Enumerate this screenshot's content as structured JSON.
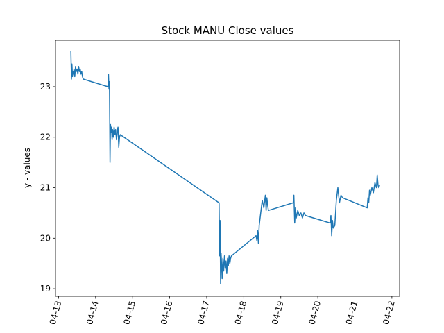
{
  "chart_data": {
    "type": "line",
    "title": "Stock MANU Close values",
    "xlabel": "",
    "ylabel": "y - values",
    "x_tick_labels": [
      "04-13",
      "04-14",
      "04-15",
      "04-16",
      "04-17",
      "04-18",
      "04-19",
      "04-20",
      "04-21",
      "04-22"
    ],
    "y_tick_labels": [
      "19",
      "20",
      "21",
      "22",
      "23"
    ],
    "xlim": [
      "2021-04-12T22:00",
      "2021-04-22T05:00"
    ],
    "ylim": [
      18.85,
      23.92
    ],
    "grid": false,
    "series_color": "#1f77b4",
    "series": [
      {
        "x": [
          "2021-04-13T08:00",
          "2021-04-13T08:20",
          "2021-04-13T08:40",
          "2021-04-13T09:00",
          "2021-04-13T09:20",
          "2021-04-13T09:40",
          "2021-04-13T10:00",
          "2021-04-13T10:30",
          "2021-04-13T11:00",
          "2021-04-13T11:30",
          "2021-04-13T12:00",
          "2021-04-13T12:30",
          "2021-04-13T13:00",
          "2021-04-13T13:30",
          "2021-04-13T14:00",
          "2021-04-13T14:30",
          "2021-04-13T15:00",
          "2021-04-13T15:30",
          "2021-04-13T16:00",
          "2021-04-14T08:00",
          "2021-04-14T08:20",
          "2021-04-14T08:40",
          "2021-04-14T09:00",
          "2021-04-14T09:20",
          "2021-04-14T09:40",
          "2021-04-14T10:00",
          "2021-04-14T10:20",
          "2021-04-14T10:40",
          "2021-04-14T11:00",
          "2021-04-14T11:30",
          "2021-04-14T12:00",
          "2021-04-14T12:30",
          "2021-04-14T13:00",
          "2021-04-14T13:30",
          "2021-04-14T14:00",
          "2021-04-14T14:30",
          "2021-04-14T15:00",
          "2021-04-14T15:30",
          "2021-04-14T16:00",
          "2021-04-17T08:00",
          "2021-04-17T08:20",
          "2021-04-17T08:40",
          "2021-04-17T09:00",
          "2021-04-17T09:20",
          "2021-04-17T09:40",
          "2021-04-17T10:00",
          "2021-04-17T10:30",
          "2021-04-17T11:00",
          "2021-04-17T11:30",
          "2021-04-17T12:00",
          "2021-04-17T12:30",
          "2021-04-17T13:00",
          "2021-04-17T13:30",
          "2021-04-17T14:00",
          "2021-04-17T14:30",
          "2021-04-17T15:00",
          "2021-04-17T15:30",
          "2021-04-17T16:00",
          "2021-04-18T08:00",
          "2021-04-18T08:30",
          "2021-04-18T09:00",
          "2021-04-18T09:30",
          "2021-04-18T10:00",
          "2021-04-18T11:00",
          "2021-04-18T12:00",
          "2021-04-18T13:00",
          "2021-04-18T14:00",
          "2021-04-18T14:30",
          "2021-04-18T15:00",
          "2021-04-18T15:30",
          "2021-04-18T16:00",
          "2021-04-19T08:00",
          "2021-04-19T08:30",
          "2021-04-19T09:00",
          "2021-04-19T09:30",
          "2021-04-19T10:00",
          "2021-04-19T11:00",
          "2021-04-19T12:00",
          "2021-04-19T13:00",
          "2021-04-19T14:00",
          "2021-04-19T15:00",
          "2021-04-19T16:00",
          "2021-04-20T08:00",
          "2021-04-20T08:30",
          "2021-04-20T09:00",
          "2021-04-20T09:30",
          "2021-04-20T10:00",
          "2021-04-20T11:00",
          "2021-04-20T12:00",
          "2021-04-20T13:00",
          "2021-04-20T14:00",
          "2021-04-20T15:00",
          "2021-04-20T16:00",
          "2021-04-21T08:00",
          "2021-04-21T08:30",
          "2021-04-21T09:00",
          "2021-04-21T09:30",
          "2021-04-21T10:00",
          "2021-04-21T11:00",
          "2021-04-21T12:00",
          "2021-04-21T13:00",
          "2021-04-21T14:00",
          "2021-04-21T14:30",
          "2021-04-21T15:00",
          "2021-04-21T15:30",
          "2021-04-21T16:00"
        ],
        "y": [
          23.7,
          23.15,
          23.45,
          23.2,
          23.3,
          23.25,
          23.35,
          23.2,
          23.4,
          23.3,
          23.35,
          23.25,
          23.4,
          23.3,
          23.35,
          23.25,
          23.3,
          23.2,
          23.15,
          23.0,
          23.25,
          22.95,
          23.1,
          21.5,
          22.25,
          22.1,
          22.2,
          21.95,
          22.15,
          22.0,
          22.2,
          22.05,
          22.15,
          21.95,
          22.1,
          22.2,
          21.8,
          22.0,
          22.05,
          20.7,
          19.65,
          20.35,
          19.1,
          19.7,
          19.45,
          19.2,
          19.6,
          19.35,
          19.65,
          19.4,
          19.55,
          19.3,
          19.6,
          19.45,
          19.65,
          19.5,
          19.6,
          19.65,
          20.05,
          19.95,
          20.15,
          19.9,
          20.25,
          20.5,
          20.75,
          20.6,
          20.85,
          20.55,
          20.8,
          20.65,
          20.55,
          20.7,
          20.85,
          20.3,
          20.6,
          20.4,
          20.55,
          20.45,
          20.5,
          20.4,
          20.5,
          20.45,
          20.3,
          20.45,
          20.05,
          20.35,
          20.2,
          20.25,
          20.75,
          21.0,
          20.7,
          20.85,
          20.8,
          20.6,
          20.8,
          20.7,
          20.95,
          20.85,
          21.0,
          20.9,
          21.1,
          21.0,
          21.25,
          21.05,
          21.0,
          21.05
        ]
      }
    ]
  }
}
